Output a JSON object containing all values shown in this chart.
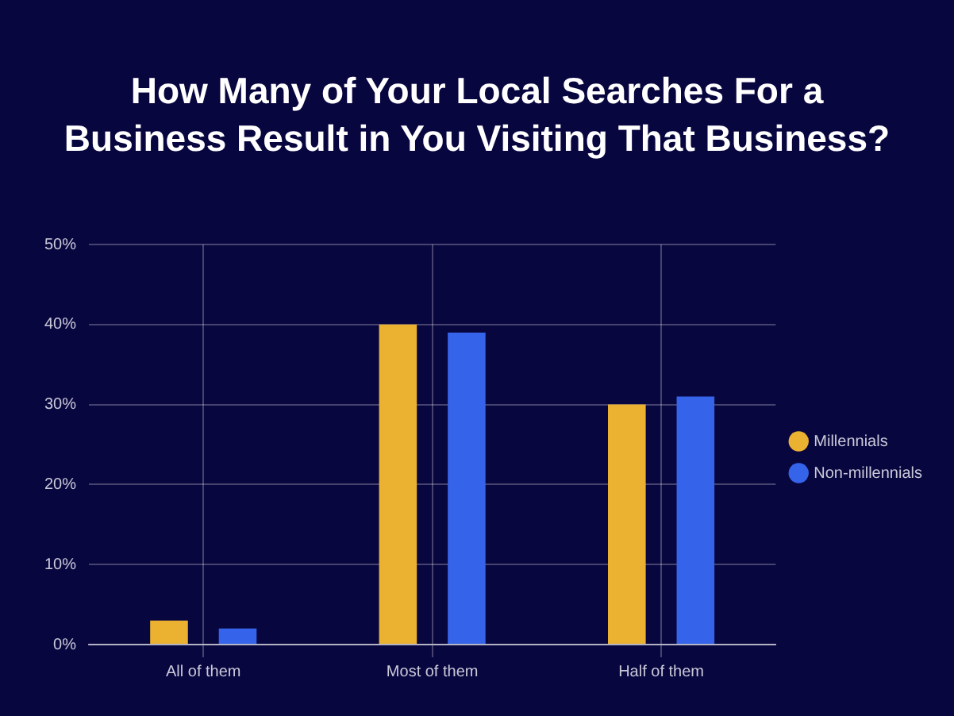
{
  "chart_data": {
    "type": "bar",
    "title": "How Many of Your Local Searches For a Business Result in You Visiting That Business?",
    "categories": [
      "All of them",
      "Most of them",
      "Half of them"
    ],
    "series": [
      {
        "name": "Millennials",
        "color": "#ebb130",
        "values": [
          3,
          40,
          30
        ]
      },
      {
        "name": "Non-millennials",
        "color": "#3563e9",
        "values": [
          2,
          39,
          31
        ]
      }
    ],
    "ylim": [
      0,
      50
    ],
    "yticks": [
      {
        "value": 0,
        "label": "0%"
      },
      {
        "value": 10,
        "label": "10%"
      },
      {
        "value": 20,
        "label": "20%"
      },
      {
        "value": 30,
        "label": "30%"
      },
      {
        "value": 40,
        "label": "40%"
      },
      {
        "value": 50,
        "label": "50%"
      }
    ],
    "grid": true,
    "legend": "right"
  }
}
